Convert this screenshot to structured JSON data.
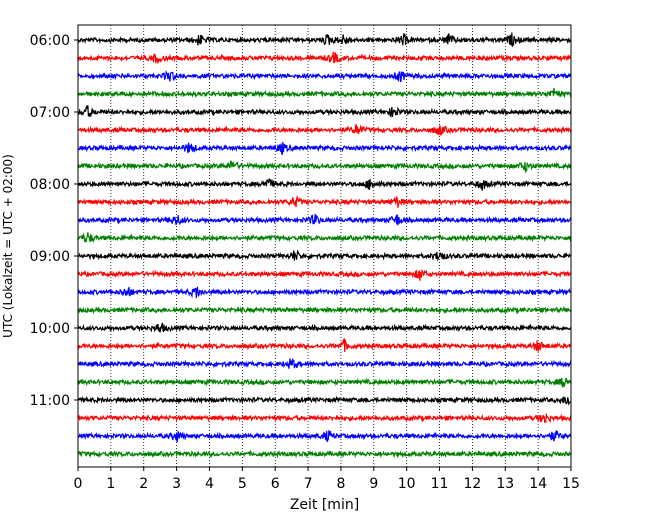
{
  "chart_data": {
    "type": "line",
    "xlabel": "Zeit  [min]",
    "ylabel": "UTC (Lokalzeit = UTC + 02:00)",
    "xlim": [
      0,
      15
    ],
    "xticks": [
      "0",
      "1",
      "2",
      "3",
      "4",
      "5",
      "6",
      "7",
      "8",
      "9",
      "10",
      "11",
      "12",
      "13",
      "14",
      "15"
    ],
    "yticks": [
      "06:00",
      "07:00",
      "08:00",
      "09:00",
      "10:00",
      "11:00"
    ],
    "grid": "vertical-dotted",
    "trace_colors": [
      "#000000",
      "#ff0000",
      "#0000ff",
      "#008000"
    ],
    "traces": [
      {
        "start": "06:00",
        "color": "#000000",
        "events_min": [
          3.7,
          7.6,
          8.1,
          9.9,
          11.3,
          13.2
        ]
      },
      {
        "start": "06:15",
        "color": "#ff0000",
        "events_min": [
          2.4,
          7.8
        ]
      },
      {
        "start": "06:30",
        "color": "#0000ff",
        "events_min": [
          2.8,
          9.8
        ]
      },
      {
        "start": "06:45",
        "color": "#008000",
        "events_min": [
          14.5
        ]
      },
      {
        "start": "07:00",
        "color": "#000000",
        "events_min": [
          0.3,
          9.6
        ]
      },
      {
        "start": "07:15",
        "color": "#ff0000",
        "events_min": [
          8.5,
          11.0
        ]
      },
      {
        "start": "07:30",
        "color": "#0000ff",
        "events_min": [
          3.4,
          6.2
        ]
      },
      {
        "start": "07:45",
        "color": "#008000",
        "events_min": [
          4.7,
          13.6
        ]
      },
      {
        "start": "08:00",
        "color": "#000000",
        "events_min": [
          5.8,
          8.9,
          12.3
        ]
      },
      {
        "start": "08:15",
        "color": "#ff0000",
        "events_min": [
          6.6,
          9.7
        ]
      },
      {
        "start": "08:30",
        "color": "#0000ff",
        "events_min": [
          3.0,
          7.2,
          9.7
        ]
      },
      {
        "start": "08:45",
        "color": "#008000",
        "events_min": [
          0.3
        ]
      },
      {
        "start": "09:00",
        "color": "#000000",
        "events_min": [
          6.6,
          11.0
        ]
      },
      {
        "start": "09:15",
        "color": "#ff0000",
        "events_min": [
          10.4
        ]
      },
      {
        "start": "09:30",
        "color": "#0000ff",
        "events_min": [
          1.5,
          3.6
        ]
      },
      {
        "start": "09:45",
        "color": "#008000",
        "events_min": []
      },
      {
        "start": "10:00",
        "color": "#000000",
        "events_min": [
          2.5
        ]
      },
      {
        "start": "10:15",
        "color": "#ff0000",
        "events_min": [
          8.1,
          14.0
        ]
      },
      {
        "start": "10:30",
        "color": "#0000ff",
        "events_min": [
          6.5
        ]
      },
      {
        "start": "10:45",
        "color": "#008000",
        "events_min": [
          14.8
        ]
      },
      {
        "start": "11:00",
        "color": "#000000",
        "events_min": [
          14.9
        ]
      },
      {
        "start": "11:15",
        "color": "#ff0000",
        "events_min": [
          14.2
        ]
      },
      {
        "start": "11:30",
        "color": "#0000ff",
        "events_min": [
          3.0,
          7.6,
          14.5
        ]
      },
      {
        "start": "11:45",
        "color": "#008000",
        "events_min": []
      }
    ]
  }
}
